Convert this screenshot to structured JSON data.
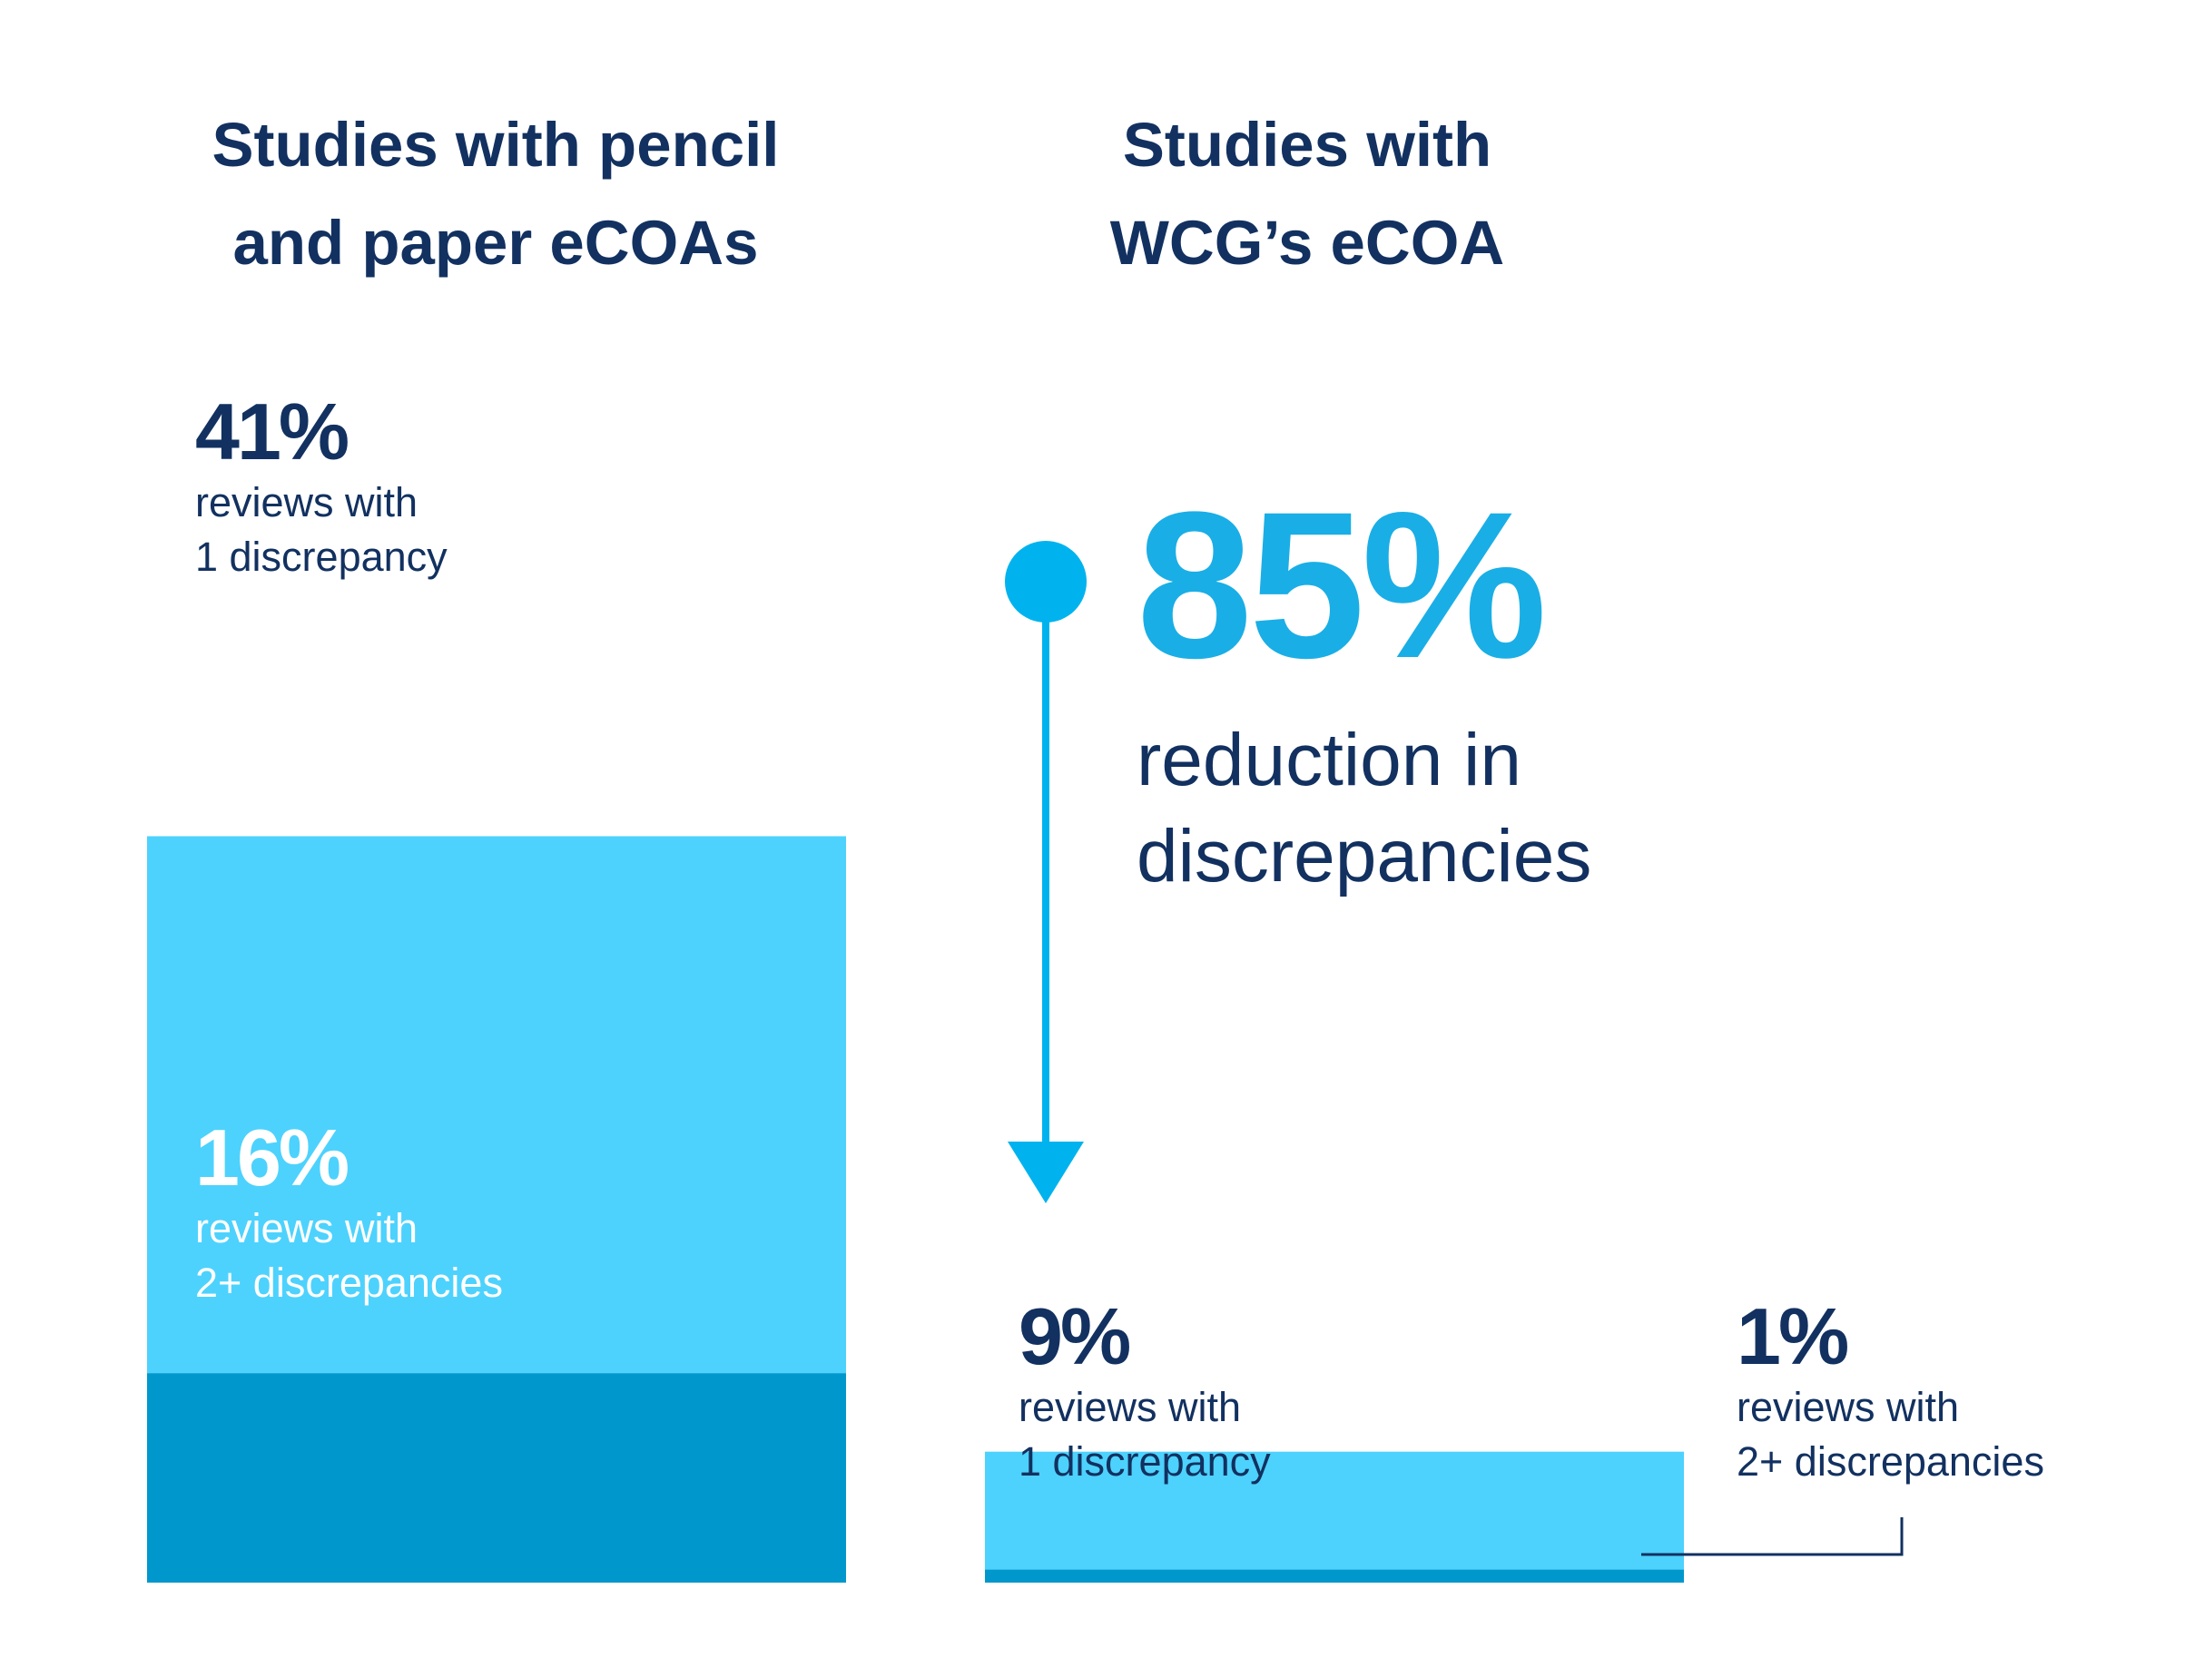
{
  "chart_data": {
    "type": "bar",
    "stacked": true,
    "colors": {
      "one_discrepancy": "#4dd2fd",
      "two_plus_discrepancies": "#0098cc",
      "text_dark": "#123160",
      "accent": "#1aaee6"
    },
    "bars": [
      {
        "title_lines": [
          "Studies with pencil",
          "and paper eCOAs"
        ],
        "segments": [
          {
            "value": 16,
            "value_label": "16%",
            "desc_lines": [
              "reviews with",
              "2+ discrepancies"
            ]
          },
          {
            "value": 41,
            "value_label": "41%",
            "desc_lines": [
              "reviews with",
              "1 discrepancy"
            ]
          }
        ]
      },
      {
        "title_lines": [
          "Studies with",
          "WCG’s eCOA"
        ],
        "segments": [
          {
            "value": 1,
            "value_label": "1%",
            "desc_lines": [
              "reviews with",
              "2+ discrepancies"
            ]
          },
          {
            "value": 9,
            "value_label": "9%",
            "desc_lines": [
              "reviews with",
              "1 discrepancy"
            ]
          }
        ]
      }
    ],
    "annotation": {
      "value_label": "85%",
      "desc_lines": [
        "reduction in",
        "discrepancies"
      ]
    }
  }
}
